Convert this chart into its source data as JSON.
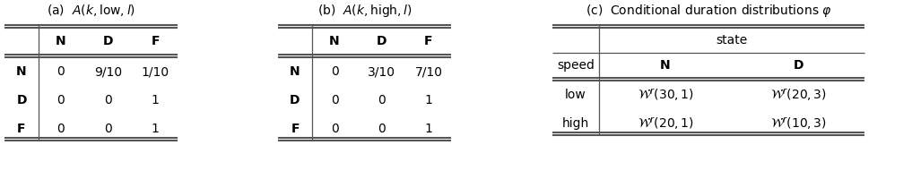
{
  "fig_width": 10.17,
  "fig_height": 2.0,
  "dpi": 100,
  "bg_color": "#ffffff",
  "table_a_title": "(a)  $A(k,\\mathrm{low},l)$",
  "table_b_title": "(b)  $A(k,\\mathrm{high},l)$",
  "table_c_title": "(c)  Conditional duration distributions $\\varphi$",
  "table_a_col_labels": [
    "",
    "N",
    "D",
    "F"
  ],
  "table_a_row_labels": [
    "N",
    "D",
    "F"
  ],
  "table_a_data": [
    [
      "0",
      "9/10",
      "1/10"
    ],
    [
      "0",
      "0",
      "1"
    ],
    [
      "0",
      "0",
      "1"
    ]
  ],
  "table_b_col_labels": [
    "",
    "N",
    "D",
    "F"
  ],
  "table_b_row_labels": [
    "N",
    "D",
    "F"
  ],
  "table_b_data": [
    [
      "0",
      "3/10",
      "7/10"
    ],
    [
      "0",
      "0",
      "1"
    ],
    [
      "0",
      "0",
      "1"
    ]
  ],
  "table_c_col_labels": [
    "speed",
    "N",
    "D"
  ],
  "table_c_row_labels": [
    "low",
    "high"
  ],
  "table_c_data": [
    [
      "$\\mathcal{W}^r(30,1)$",
      "$\\mathcal{W}^r(20,3)$"
    ],
    [
      "$\\mathcal{W}^r(20,1)$",
      "$\\mathcal{W}^r(10,3)$"
    ]
  ],
  "table_c_state_label": "state",
  "font_size": 10,
  "title_font_size": 10,
  "header_font_size": 10
}
